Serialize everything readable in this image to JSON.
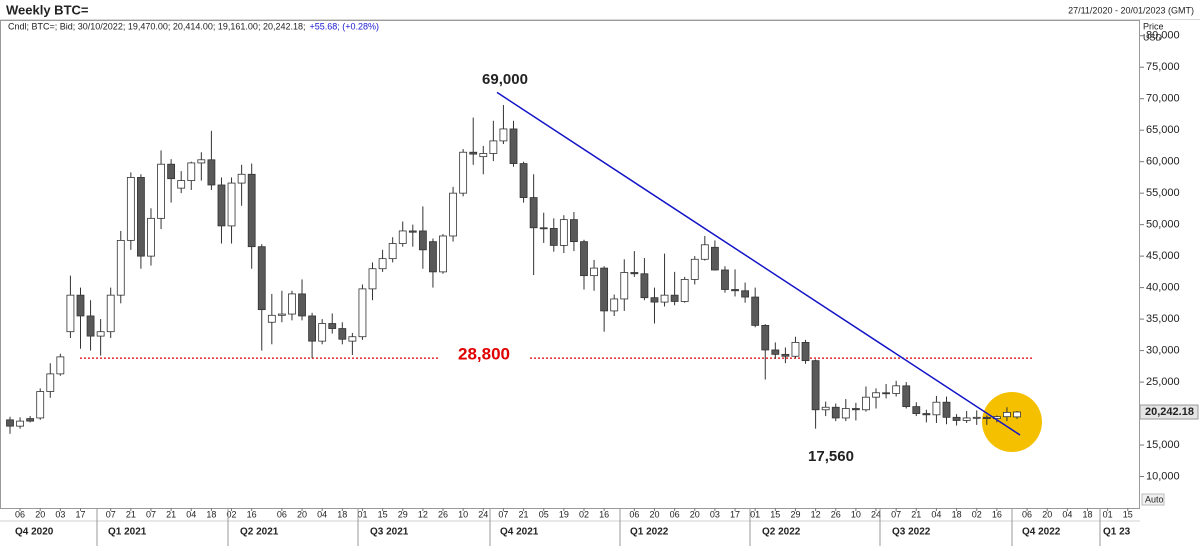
{
  "chart_data": {
    "type": "candlestick",
    "title": "Weekly BTC=",
    "date_range": "27/11/2020 - 20/01/2023 (GMT)",
    "info": "Cndl; BTC=; Bid; 30/10/2022; 19,470.00; 20,414.00; 19,161.00; 20,242.18;",
    "change": "+55.68; (+0.28%)",
    "y_axis_label": [
      "Price",
      "USD"
    ],
    "scale_mode": "Auto",
    "up_color": "#ffffff",
    "down_color": "#595959",
    "open": [
      19000,
      18000,
      19200,
      19300,
      23500,
      26300,
      33000,
      38800,
      35500,
      32300,
      33000,
      38800,
      47500,
      57500,
      45000,
      51000,
      59600,
      55800,
      57000,
      59800,
      60300,
      56300,
      49800,
      56600,
      58000,
      46500,
      34500,
      35600,
      35800,
      39000,
      35500,
      31500,
      34300,
      33500,
      31500,
      32200,
      39800,
      43000,
      44600,
      47000,
      49000,
      49000,
      47300,
      42500,
      48200,
      55000,
      61500,
      60800,
      61300,
      63300,
      65200,
      59700,
      54300,
      49500,
      49400,
      46700,
      50800,
      47300,
      41900,
      43100,
      36300,
      38200,
      42400,
      42200,
      38400,
      37700,
      38800,
      37800,
      41300,
      44500,
      46400,
      42800,
      39700,
      39500,
      38500,
      34000,
      30100,
      29400,
      29100,
      31300,
      28400,
      20600,
      21000,
      19300,
      20800,
      20600,
      22600,
      23300,
      23200,
      24400,
      21100,
      20000,
      19800,
      21800,
      19400,
      18900,
      19300,
      19400,
      19200,
      19500,
      19470
    ],
    "high": [
      19500,
      19400,
      19600,
      24000,
      28000,
      29500,
      41900,
      40000,
      38000,
      35000,
      40000,
      49000,
      58300,
      58000,
      52600,
      61800,
      60400,
      58500,
      60000,
      61500,
      64900,
      57500,
      57500,
      59500,
      59700,
      46900,
      39000,
      39500,
      39500,
      41300,
      36000,
      35000,
      35900,
      34500,
      32800,
      40500,
      44000,
      46000,
      48000,
      50500,
      50000,
      52900,
      47800,
      48500,
      56000,
      62000,
      67000,
      62500,
      66500,
      69000,
      66500,
      60000,
      58000,
      51900,
      51000,
      51500,
      52000,
      47600,
      44400,
      43400,
      38900,
      44500,
      45800,
      44700,
      40000,
      45400,
      42500,
      41700,
      45000,
      48200,
      47500,
      43400,
      42900,
      40800,
      40000,
      34200,
      31300,
      30500,
      32200,
      31700,
      28600,
      21900,
      21600,
      22300,
      21700,
      24300,
      24000,
      24700,
      25200,
      25000,
      21800,
      20600,
      22800,
      22700,
      19900,
      20400,
      20500,
      19700,
      19700,
      21000,
      20414
    ],
    "low": [
      16800,
      17600,
      18600,
      19000,
      22500,
      26000,
      32000,
      30300,
      30000,
      29200,
      32000,
      37500,
      46000,
      43000,
      43500,
      49300,
      53500,
      55000,
      55500,
      57000,
      55500,
      47000,
      47000,
      53000,
      43000,
      30000,
      31000,
      34500,
      34800,
      34800,
      28800,
      31000,
      32700,
      31000,
      29300,
      31700,
      38000,
      42500,
      44000,
      46500,
      46500,
      43000,
      40000,
      42200,
      47300,
      54500,
      59500,
      58000,
      60100,
      62800,
      59200,
      53500,
      42000,
      47100,
      45700,
      45500,
      45800,
      39700,
      39500,
      33000,
      35500,
      36300,
      41700,
      38000,
      34300,
      37000,
      37200,
      37600,
      40500,
      44300,
      42700,
      39200,
      38600,
      37600,
      33700,
      25400,
      28700,
      28000,
      28800,
      27900,
      17600,
      19600,
      18800,
      18800,
      18900,
      20300,
      20800,
      22400,
      22700,
      20800,
      19600,
      18600,
      18500,
      18300,
      18100,
      18500,
      18200,
      18200,
      18600,
      18800,
      19161
    ],
    "close": [
      18000,
      18800,
      18800,
      23500,
      26300,
      29000,
      38800,
      35500,
      32300,
      33000,
      38800,
      47500,
      57500,
      45000,
      51000,
      59600,
      57300,
      57000,
      59800,
      60300,
      56300,
      49800,
      56600,
      58000,
      46500,
      36500,
      35600,
      35800,
      39000,
      35500,
      31500,
      34300,
      33500,
      31800,
      32200,
      39800,
      43000,
      44600,
      47000,
      49000,
      48800,
      46000,
      42500,
      48200,
      55000,
      61500,
      61200,
      61300,
      63300,
      65200,
      59700,
      54300,
      49500,
      49400,
      46700,
      50800,
      47300,
      41900,
      43100,
      36300,
      38200,
      42400,
      42200,
      38400,
      37700,
      38800,
      37800,
      41300,
      44500,
      46800,
      42800,
      39700,
      39500,
      38500,
      34000,
      30100,
      29400,
      29100,
      31300,
      28400,
      20600,
      21000,
      19300,
      20800,
      20600,
      22600,
      23300,
      23200,
      24400,
      21100,
      20000,
      19800,
      21800,
      19400,
      18900,
      19300,
      19400,
      19200,
      19500,
      20187,
      20242.18
    ],
    "last_price": {
      "value": 20242.18,
      "label": "20,242.18"
    },
    "ylim": [
      5000,
      82500
    ],
    "yticks": [
      {
        "value": 10000,
        "label": "10,000"
      },
      {
        "value": 15000,
        "label": "15,000"
      },
      {
        "value": 20000,
        "label": "20,000"
      },
      {
        "value": 25000,
        "label": "25,000"
      },
      {
        "value": 30000,
        "label": "30,000"
      },
      {
        "value": 35000,
        "label": "35,000"
      },
      {
        "value": 40000,
        "label": "40,000"
      },
      {
        "value": 45000,
        "label": "45,000"
      },
      {
        "value": 50000,
        "label": "50,000"
      },
      {
        "value": 55000,
        "label": "55,000"
      },
      {
        "value": 60000,
        "label": "60,000"
      },
      {
        "value": 65000,
        "label": "65,000"
      },
      {
        "value": 70000,
        "label": "70,000"
      },
      {
        "value": 75000,
        "label": "75,000"
      },
      {
        "value": 80000,
        "label": "80,000"
      }
    ],
    "xticks": [
      {
        "value": 1,
        "label": "06"
      },
      {
        "value": 3,
        "label": "20"
      },
      {
        "value": 5,
        "label": "03"
      },
      {
        "value": 7,
        "label": "17"
      },
      {
        "value": 10,
        "label": "07"
      },
      {
        "value": 12,
        "label": "21"
      },
      {
        "value": 14,
        "label": "07"
      },
      {
        "value": 16,
        "label": "21"
      },
      {
        "value": 18,
        "label": "04"
      },
      {
        "value": 20,
        "label": "18"
      },
      {
        "value": 22,
        "label": "02"
      },
      {
        "value": 24,
        "label": "16"
      },
      {
        "value": 27,
        "label": "06"
      },
      {
        "value": 29,
        "label": "20"
      },
      {
        "value": 31,
        "label": "04"
      },
      {
        "value": 33,
        "label": "18"
      },
      {
        "value": 35,
        "label": "01"
      },
      {
        "value": 37,
        "label": "15"
      },
      {
        "value": 39,
        "label": "29"
      },
      {
        "value": 41,
        "label": "12"
      },
      {
        "value": 43,
        "label": "26"
      },
      {
        "value": 45,
        "label": "10"
      },
      {
        "value": 47,
        "label": "24"
      },
      {
        "value": 49,
        "label": "07"
      },
      {
        "value": 51,
        "label": "21"
      },
      {
        "value": 53,
        "label": "05"
      },
      {
        "value": 55,
        "label": "19"
      },
      {
        "value": 57,
        "label": "02"
      },
      {
        "value": 59,
        "label": "16"
      },
      {
        "value": 62,
        "label": "06"
      },
      {
        "value": 64,
        "label": "20"
      },
      {
        "value": 66,
        "label": "06"
      },
      {
        "value": 68,
        "label": "20"
      },
      {
        "value": 70,
        "label": "03"
      },
      {
        "value": 72,
        "label": "17"
      },
      {
        "value": 74,
        "label": "01"
      },
      {
        "value": 76,
        "label": "15"
      },
      {
        "value": 78,
        "label": "29"
      },
      {
        "value": 80,
        "label": "12"
      },
      {
        "value": 82,
        "label": "26"
      },
      {
        "value": 84,
        "label": "10"
      },
      {
        "value": 86,
        "label": "24"
      },
      {
        "value": 88,
        "label": "07"
      },
      {
        "value": 90,
        "label": "21"
      },
      {
        "value": 92,
        "label": "04"
      },
      {
        "value": 94,
        "label": "18"
      },
      {
        "value": 96,
        "label": "02"
      },
      {
        "value": 98,
        "label": "16"
      },
      {
        "value": 101,
        "label": "06"
      },
      {
        "value": 103,
        "label": "20"
      },
      {
        "value": 105,
        "label": "04"
      },
      {
        "value": 107,
        "label": "18"
      },
      {
        "value": 109,
        "label": "01"
      },
      {
        "value": 111,
        "label": "15"
      }
    ],
    "quarters": [
      "Q4 2020",
      "Q1 2021",
      "Q2 2021",
      "Q3 2021",
      "Q4 2021",
      "Q1 2022",
      "Q2 2022",
      "Q3 2022",
      "Q4 2022",
      "Q1 23"
    ],
    "support": {
      "value": 28800,
      "label": "28,800",
      "color": "#e00000"
    },
    "trendline": {
      "from": 71000,
      "to": 16600,
      "color": "#1414c8"
    },
    "annotations": [
      "69,000",
      "17,560"
    ]
  }
}
